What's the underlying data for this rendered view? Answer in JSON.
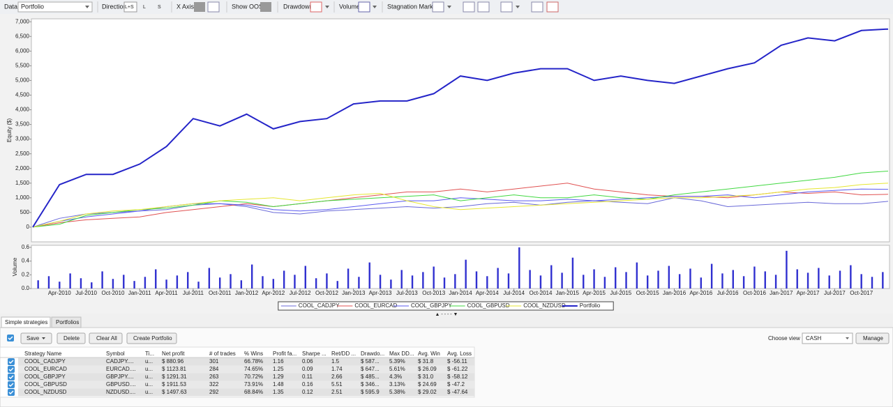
{
  "toolbar": {
    "data_label": "Data",
    "data_value": "Portfolio",
    "direction": "Direction",
    "direction_options": [
      "L+S",
      "L",
      "S"
    ],
    "x_axis": "X Axis",
    "show_oos": "Show OOS",
    "drawdown": "Drawdown",
    "volume": "Volume",
    "stagnation_marker": "Stagnation Marker"
  },
  "chart_data": [
    {
      "type": "line",
      "ylabel": "Equity ($)",
      "categories": [
        null,
        "Apr-2010",
        "Jul-2010",
        "Oct-2010",
        "Jan-2011",
        "Apr-2011",
        "Jul-2011",
        "Oct-2011",
        "Jan-2012",
        "Apr-2012",
        "Jul-2012",
        "Oct-2012",
        "Jan-2013",
        "Apr-2013",
        "Jul-2013",
        "Oct-2013",
        "Jan-2014",
        "Apr-2014",
        "Jul-2014",
        "Oct-2014",
        "Jan-2015",
        "Apr-2015",
        "Jul-2015",
        "Oct-2015",
        "Jan-2016",
        "Apr-2016",
        "Jul-2016",
        "Oct-2016",
        "Jan-2017",
        "Apr-2017",
        "Jul-2017",
        "Oct-2017",
        null
      ],
      "series": [
        {
          "name": "COOL_CADJPY",
          "color": "#6868d8",
          "values": [
            0,
            300,
            450,
            500,
            550,
            600,
            750,
            800,
            700,
            500,
            450,
            550,
            600,
            650,
            700,
            650,
            700,
            800,
            850,
            750,
            850,
            900,
            850,
            800,
            1000,
            900,
            700,
            750,
            800,
            850,
            800,
            800,
            880
          ]
        },
        {
          "name": "COOL_EURCAD",
          "color": "#e05050",
          "values": [
            0,
            150,
            250,
            300,
            350,
            500,
            600,
            700,
            800,
            700,
            800,
            900,
            1000,
            1100,
            1200,
            1200,
            1300,
            1200,
            1300,
            1400,
            1500,
            1300,
            1200,
            1100,
            1050,
            1050,
            1000,
            1100,
            1200,
            1150,
            1200,
            1100,
            1120
          ]
        },
        {
          "name": "COOL_GBPJPY",
          "color": "#5a5af0",
          "values": [
            0,
            200,
            350,
            450,
            550,
            700,
            800,
            800,
            750,
            600,
            550,
            600,
            700,
            800,
            900,
            900,
            1000,
            950,
            900,
            900,
            950,
            900,
            950,
            1000,
            1050,
            1050,
            1100,
            1000,
            1100,
            1200,
            1250,
            1300,
            1290
          ]
        },
        {
          "name": "COOL_GBPUSD",
          "color": "#40d840",
          "values": [
            0,
            100,
            400,
            500,
            600,
            650,
            750,
            900,
            850,
            700,
            800,
            900,
            950,
            1000,
            1050,
            1100,
            900,
            1000,
            1100,
            1000,
            1000,
            1100,
            1000,
            950,
            1100,
            1200,
            1300,
            1400,
            1500,
            1600,
            1700,
            1850,
            1910
          ]
        },
        {
          "name": "COOL_NZDUSD",
          "color": "#e6e630",
          "values": [
            0,
            200,
            450,
            550,
            600,
            700,
            800,
            900,
            950,
            1000,
            900,
            1000,
            1100,
            1150,
            900,
            700,
            600,
            650,
            700,
            750,
            800,
            850,
            900,
            950,
            1000,
            1000,
            1050,
            1100,
            1200,
            1300,
            1350,
            1450,
            1500
          ]
        },
        {
          "name": "Portfolio",
          "color": "#2424c8",
          "values": [
            0,
            1450,
            1800,
            1800,
            2150,
            2750,
            3700,
            3450,
            3850,
            3350,
            3600,
            3700,
            4200,
            4300,
            4300,
            4550,
            5150,
            5000,
            5250,
            5400,
            5400,
            5000,
            5150,
            5000,
            4900,
            5150,
            5400,
            5600,
            6200,
            6450,
            6350,
            6700,
            6750
          ]
        }
      ],
      "ylim": [
        -500,
        7100
      ],
      "yticks": [
        0,
        500,
        {
          "value": 1000,
          "label": "1,000"
        },
        {
          "value": 1500,
          "label": "1,500"
        },
        {
          "value": 2000,
          "label": "2,000"
        },
        {
          "value": 2500,
          "label": "2,500"
        },
        {
          "value": 3000,
          "label": "3,000"
        },
        {
          "value": 3500,
          "label": "3,500"
        },
        {
          "value": 4000,
          "label": "4,000"
        },
        {
          "value": 4500,
          "label": "4,500"
        },
        {
          "value": 5000,
          "label": "5,000"
        },
        {
          "value": 5500,
          "label": "5,500"
        },
        {
          "value": 6000,
          "label": "6,000"
        },
        {
          "value": 6500,
          "label": "6,500"
        },
        {
          "value": 7000,
          "label": "7,000"
        }
      ]
    },
    {
      "type": "bar",
      "ylabel": "Volume",
      "color": "#3030d0",
      "values": [
        0.12,
        0.18,
        0.1,
        0.22,
        0.15,
        0.09,
        0.25,
        0.14,
        0.2,
        0.11,
        0.17,
        0.28,
        0.13,
        0.19,
        0.24,
        0.1,
        0.3,
        0.16,
        0.21,
        0.12,
        0.35,
        0.18,
        0.14,
        0.26,
        0.2,
        0.33,
        0.15,
        0.22,
        0.11,
        0.29,
        0.17,
        0.38,
        0.2,
        0.13,
        0.27,
        0.19,
        0.24,
        0.32,
        0.16,
        0.21,
        0.42,
        0.25,
        0.18,
        0.3,
        0.22,
        0.6,
        0.27,
        0.19,
        0.34,
        0.23,
        0.45,
        0.2,
        0.28,
        0.17,
        0.31,
        0.24,
        0.38,
        0.19,
        0.26,
        0.33,
        0.21,
        0.29,
        0.16,
        0.36,
        0.22,
        0.27,
        0.18,
        0.32,
        0.25,
        0.2,
        0.55,
        0.28,
        0.23,
        0.3,
        0.19,
        0.26,
        0.34,
        0.21,
        0.17,
        0.24
      ],
      "ylim": [
        0,
        0.63
      ],
      "yticks": [
        {
          "value": 0,
          "label": "0.0"
        },
        0.2,
        0.4,
        0.6
      ]
    }
  ],
  "tabs": [
    "Simple strategies",
    "Portfolios"
  ],
  "buttons": {
    "save": "Save",
    "delete": "Delete",
    "clear_all": "Clear All",
    "create_portfolio": "Create Portfolio",
    "choose_view": "Choose view",
    "view_value": "CASH",
    "manage": "Manage"
  },
  "table": {
    "headers": [
      "Strategy Name",
      "Symbol",
      "Ti...",
      "Net profit",
      "# of trades",
      "% Wins",
      "Profit fa...",
      "Sharpe ...",
      "Ret/DD ...",
      "Drawdo...",
      "Max DD...",
      "Avg. Win",
      "Avg. Loss"
    ],
    "rows": [
      [
        "COOL_CADJPY",
        "CADJPY....",
        "u...",
        "$ 880.96",
        "301",
        "66.78%",
        "1.16",
        "0.06",
        "1.5",
        "$ 587...",
        "5.39%",
        "$ 31.8",
        "$ -56.11"
      ],
      [
        "COOL_EURCAD",
        "EURCAD....",
        "u...",
        "$ 1123.81",
        "284",
        "74.65%",
        "1.25",
        "0.09",
        "1.74",
        "$ 647...",
        "5.61%",
        "$ 26.09",
        "$ -61.22"
      ],
      [
        "COOL_GBPJPY",
        "GBPJPY....",
        "u...",
        "$ 1291.31",
        "263",
        "70.72%",
        "1.29",
        "0.11",
        "2.66",
        "$ 485...",
        "4.3%",
        "$ 31.0",
        "$ -58.12"
      ],
      [
        "COOL_GBPUSD",
        "GBPUSD....",
        "u...",
        "$ 1911.53",
        "322",
        "73.91%",
        "1.48",
        "0.16",
        "5.51",
        "$ 346...",
        "3.13%",
        "$ 24.69",
        "$ -47.2"
      ],
      [
        "COOL_NZDUSD",
        "NZDUSD....",
        "u...",
        "$ 1497.63",
        "292",
        "68.84%",
        "1.35",
        "0.12",
        "2.51",
        "$ 595.9",
        "5.38%",
        "$ 29.02",
        "$ -47.64"
      ]
    ]
  }
}
